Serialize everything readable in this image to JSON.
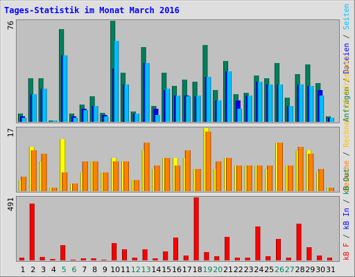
{
  "title": "Tages-Statistik im Monat March 2016",
  "right_legend": {
    "top": [
      {
        "text": "Anfragen",
        "color": "#00805c"
      },
      {
        "text": " / ",
        "color": "#404040"
      },
      {
        "text": "Dateien",
        "color": "#0000ff"
      },
      {
        "text": " / ",
        "color": "#404040"
      },
      {
        "text": "Seiten",
        "color": "#00c0ff"
      }
    ],
    "middle": [
      {
        "text": "Besuche",
        "color": "#ff8000"
      },
      {
        "text": " / ",
        "color": "#404040"
      },
      {
        "text": "Rechner (IP-Adressen)",
        "color": "#ffc000"
      }
    ],
    "bottom": [
      {
        "text": "kB F",
        "color": "#ff0000"
      },
      {
        "text": " / ",
        "color": "#404040"
      },
      {
        "text": "kB In",
        "color": "#0000ff"
      },
      {
        "text": " / ",
        "color": "#404040"
      },
      {
        "text": "kB Out",
        "color": "#00805c"
      }
    ]
  },
  "colors": {
    "background": "#dedede",
    "panel": "#c0c0c0",
    "title": "#0000ff",
    "hits": "#00805c",
    "files": "#0000ff",
    "pages": "#00c0ff",
    "visits": "#ff8000",
    "sites": "#ffff00",
    "kbytes": "#ff0000",
    "day_label": "#000000",
    "weekend_label": "#00805c"
  },
  "chart_data": [
    {
      "type": "bar",
      "panel": "top",
      "ymax_label": "76",
      "ylim": [
        0,
        76
      ],
      "categories": [
        "1",
        "2",
        "3",
        "4",
        "5",
        "6",
        "7",
        "8",
        "9",
        "10",
        "11",
        "12",
        "13",
        "14",
        "15",
        "16",
        "17",
        "18",
        "19",
        "20",
        "21",
        "22",
        "23",
        "24",
        "25",
        "26",
        "27",
        "28",
        "29",
        "30",
        "31"
      ],
      "weekend": [
        5,
        6,
        12,
        13,
        19,
        20,
        26,
        27
      ],
      "series": [
        {
          "key": "hits",
          "values": [
            6,
            33,
            33,
            1,
            70,
            6,
            13,
            19,
            7,
            76,
            37,
            8,
            56,
            12,
            37,
            27,
            32,
            30,
            58,
            24,
            46,
            21,
            22,
            35,
            33,
            44,
            18,
            36,
            43,
            29,
            4
          ]
        },
        {
          "key": "files",
          "values": [
            4,
            21,
            25,
            0,
            50,
            4,
            10,
            12,
            5,
            40,
            28,
            6,
            44,
            10,
            24,
            20,
            20,
            19,
            34,
            16,
            38,
            16,
            20,
            30,
            28,
            28,
            12,
            28,
            27,
            24,
            3
          ]
        },
        {
          "key": "pages",
          "values": [
            3,
            21,
            25,
            1,
            50,
            3,
            9,
            12,
            4,
            61,
            28,
            6,
            44,
            5,
            25,
            20,
            19,
            20,
            34,
            16,
            38,
            10,
            20,
            30,
            28,
            28,
            12,
            28,
            27,
            20,
            3
          ]
        }
      ]
    },
    {
      "type": "bar",
      "panel": "middle",
      "ymax_label": "17",
      "ylim": [
        0,
        17
      ],
      "categories": [
        "1",
        "2",
        "3",
        "4",
        "5",
        "6",
        "7",
        "8",
        "9",
        "10",
        "11",
        "12",
        "13",
        "14",
        "15",
        "16",
        "17",
        "18",
        "19",
        "20",
        "21",
        "22",
        "23",
        "24",
        "25",
        "26",
        "27",
        "28",
        "29",
        "30",
        "31"
      ],
      "series": [
        {
          "key": "sites",
          "values": [
            3,
            12,
            8,
            1,
            14,
            2,
            5,
            8,
            5,
            9,
            8,
            3,
            11,
            6,
            9,
            9,
            9,
            6,
            17,
            6,
            9,
            7,
            7,
            7,
            6,
            13,
            7,
            11,
            11,
            5,
            1
          ]
        },
        {
          "key": "visits",
          "values": [
            4,
            11,
            10,
            1,
            5,
            2,
            8,
            8,
            5,
            8,
            8,
            3,
            13,
            7,
            9,
            7,
            11,
            6,
            16,
            8,
            9,
            7,
            7,
            7,
            7,
            13,
            7,
            12,
            10,
            6,
            1
          ]
        }
      ]
    },
    {
      "type": "bar",
      "panel": "bottom",
      "ymax_label": "491",
      "ylim": [
        0,
        491
      ],
      "categories": [
        "1",
        "2",
        "3",
        "4",
        "5",
        "6",
        "7",
        "8",
        "9",
        "10",
        "11",
        "12",
        "13",
        "14",
        "15",
        "16",
        "17",
        "18",
        "19",
        "20",
        "21",
        "22",
        "23",
        "24",
        "25",
        "26",
        "27",
        "28",
        "29",
        "30",
        "31"
      ],
      "series": [
        {
          "key": "kbytes",
          "values": [
            20,
            444,
            25,
            10,
            118,
            8,
            15,
            15,
            8,
            134,
            86,
            22,
            86,
            15,
            70,
            178,
            38,
            491,
            65,
            35,
            182,
            22,
            22,
            262,
            34,
            166,
            22,
            286,
            102,
            40,
            20
          ]
        }
      ]
    }
  ]
}
